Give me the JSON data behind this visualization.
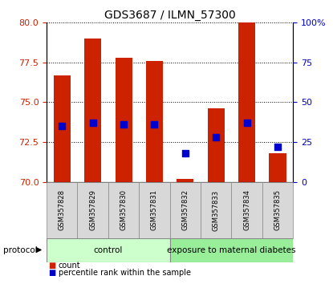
{
  "title": "GDS3687 / ILMN_57300",
  "samples": [
    "GSM357828",
    "GSM357829",
    "GSM357830",
    "GSM357831",
    "GSM357832",
    "GSM357833",
    "GSM357834",
    "GSM357835"
  ],
  "count_values": [
    76.7,
    79.0,
    77.8,
    77.6,
    70.2,
    74.6,
    80.0,
    71.8
  ],
  "percentile_values": [
    35,
    37,
    36,
    36,
    18,
    28,
    37,
    22
  ],
  "ylim_left": [
    70,
    80
  ],
  "ylim_right": [
    0,
    100
  ],
  "yticks_left": [
    70,
    72.5,
    75,
    77.5,
    80
  ],
  "yticks_right": [
    0,
    25,
    50,
    75,
    100
  ],
  "yticklabels_right": [
    "0",
    "25",
    "50",
    "75",
    "100%"
  ],
  "bar_color": "#cc2200",
  "dot_color": "#0000cc",
  "bar_width": 0.55,
  "dot_size": 28,
  "left_tick_color": "#cc2200",
  "right_tick_color": "#0000cc",
  "bottom_bar_color_control": "#ccffcc",
  "bottom_bar_color_exposed": "#99ee99",
  "legend_count_label": "count",
  "legend_pct_label": "percentile rank within the sample",
  "protocol_label": "protocol",
  "title_fontsize": 10,
  "tick_fontsize": 8,
  "sample_fontsize": 6,
  "proto_fontsize": 7.5,
  "legend_fontsize": 8
}
